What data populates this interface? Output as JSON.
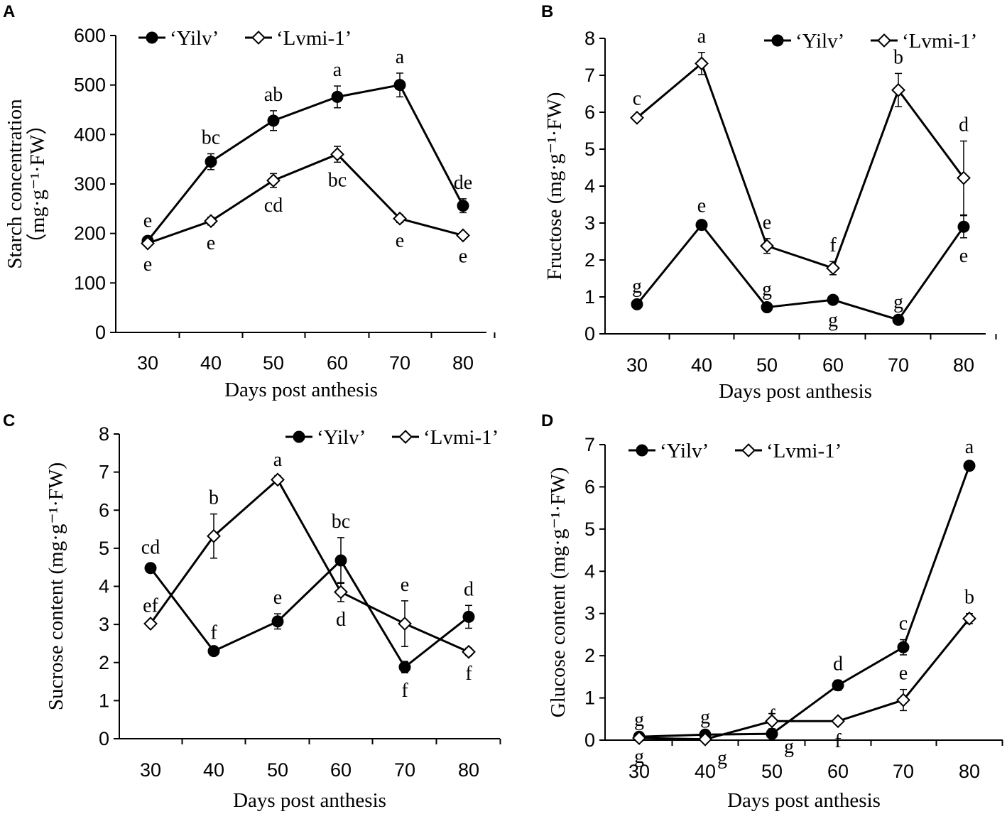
{
  "chart_data": [
    {
      "id": "A",
      "panel_label": "A",
      "type": "line",
      "x": [
        30,
        40,
        50,
        60,
        70,
        80
      ],
      "xlabel": "Days post anthesis",
      "ylabel": "Starch concentration",
      "ylabel_unit": "（mg·g⁻¹·FW）",
      "ylim": [
        0,
        600
      ],
      "yticks": [
        0,
        100,
        200,
        300,
        400,
        500,
        600
      ],
      "legend": [
        "‘Yilv’",
        "‘Lvmi-1’"
      ],
      "legend_position": "top-left",
      "series": [
        {
          "name": "‘Yilv’",
          "marker": "filled-circle",
          "values": [
            185,
            345,
            428,
            476,
            500,
            256
          ],
          "errors": [
            8,
            16,
            20,
            22,
            24,
            14
          ],
          "letters": [
            "e",
            "bc",
            "ab",
            "a",
            "a",
            "de"
          ],
          "letter_pos": [
            "above",
            "above",
            "above",
            "above",
            "above",
            "above"
          ]
        },
        {
          "name": "‘Lvmi-1’",
          "marker": "open-diamond",
          "values": [
            180,
            225,
            307,
            360,
            230,
            196
          ],
          "errors": [
            6,
            8,
            14,
            16,
            8,
            6
          ],
          "letters": [
            "e",
            "e",
            "cd",
            "bc",
            "e",
            "e"
          ],
          "letter_pos": [
            "below",
            "below",
            "below",
            "below",
            "below",
            "below"
          ]
        }
      ]
    },
    {
      "id": "B",
      "panel_label": "B",
      "type": "line",
      "x": [
        30,
        40,
        50,
        60,
        70,
        80
      ],
      "xlabel": "Days post anthesis",
      "ylabel": "Fructose (mg·g⁻¹·FW)",
      "ylabel_unit": "",
      "ylim": [
        0,
        8
      ],
      "yticks": [
        0,
        1,
        2,
        3,
        4,
        5,
        6,
        7,
        8
      ],
      "legend": [
        "‘Yilv’",
        "‘Lvmi-1’"
      ],
      "legend_position": "top-right",
      "series": [
        {
          "name": "‘Yilv’",
          "marker": "filled-circle",
          "values": [
            0.8,
            2.95,
            0.72,
            0.92,
            0.38,
            2.9
          ],
          "errors": [
            0.05,
            0.08,
            0.05,
            0.06,
            0.04,
            0.3
          ],
          "letters": [
            "g",
            "e",
            "g",
            "g",
            "g",
            "e"
          ],
          "letter_pos": [
            "above",
            "above",
            "above",
            "below",
            "above",
            "below"
          ]
        },
        {
          "name": "‘Lvmi-1’",
          "marker": "open-diamond",
          "values": [
            5.85,
            7.32,
            2.38,
            1.78,
            6.6,
            4.22
          ],
          "errors": [
            0.08,
            0.3,
            0.2,
            0.18,
            0.45,
            1.0
          ],
          "letters": [
            "c",
            "a",
            "e",
            "f",
            "b",
            "d"
          ],
          "letter_pos": [
            "above",
            "above",
            "above",
            "above",
            "above",
            "above"
          ]
        }
      ]
    },
    {
      "id": "C",
      "panel_label": "C",
      "type": "line",
      "x": [
        30,
        40,
        50,
        60,
        70,
        80
      ],
      "xlabel": "Days post anthesis",
      "ylabel": "Sucrose content (mg·g⁻¹·FW)",
      "ylabel_unit": "",
      "ylim": [
        0,
        8
      ],
      "yticks": [
        0,
        1,
        2,
        3,
        4,
        5,
        6,
        7,
        8
      ],
      "legend": [
        "‘Yilv’",
        "‘Lvmi-1’"
      ],
      "legend_position": "top-right",
      "series": [
        {
          "name": "‘Yilv’",
          "marker": "filled-circle",
          "values": [
            4.48,
            2.3,
            3.08,
            4.68,
            1.88,
            3.2
          ],
          "errors": [
            0.12,
            0.06,
            0.2,
            0.6,
            0.15,
            0.3
          ],
          "letters": [
            "cd",
            "f",
            "e",
            "bc",
            "f",
            "d"
          ],
          "letter_pos": [
            "above",
            "above",
            "above",
            "above",
            "below",
            "above"
          ]
        },
        {
          "name": "‘Lvmi-1’",
          "marker": "open-diamond",
          "values": [
            3.02,
            5.32,
            6.8,
            3.85,
            3.02,
            2.28
          ],
          "errors": [
            0.05,
            0.58,
            0.1,
            0.25,
            0.6,
            0.1
          ],
          "letters": [
            "ef",
            "b",
            "a",
            "d",
            "e",
            "f"
          ],
          "letter_pos": [
            "above",
            "above",
            "above",
            "below",
            "above",
            "below"
          ]
        }
      ]
    },
    {
      "id": "D",
      "panel_label": "D",
      "type": "line",
      "x": [
        30,
        40,
        50,
        60,
        70,
        80
      ],
      "xlabel": "Days post anthesis",
      "ylabel": "Glucose content (mg·g⁻¹·FW)",
      "ylabel_unit": "",
      "ylim": [
        0,
        7
      ],
      "yticks": [
        0,
        1,
        2,
        3,
        4,
        5,
        6,
        7
      ],
      "legend": [
        "‘Yilv’",
        "‘Lvmi-1’"
      ],
      "legend_position": "top-left",
      "series": [
        {
          "name": "‘Yilv’",
          "marker": "filled-circle",
          "values": [
            0.08,
            0.13,
            0.15,
            1.3,
            2.2,
            6.5
          ],
          "errors": [
            0.02,
            0.03,
            0.03,
            0.12,
            0.18,
            0.06
          ],
          "letters": [
            "g",
            "g",
            "f",
            "d",
            "c",
            "a"
          ],
          "letter_pos": [
            "above",
            "above",
            "above",
            "above",
            "above",
            "above"
          ]
        },
        {
          "name": "‘Lvmi-1’",
          "marker": "open-diamond",
          "values": [
            0.05,
            0.02,
            0.45,
            0.45,
            0.95,
            2.88
          ],
          "errors": [
            0.02,
            0.02,
            0.18,
            0.05,
            0.25,
            0.12
          ],
          "letters": [
            "g",
            "g",
            "g",
            "f",
            "e",
            "b"
          ],
          "letter_pos": [
            "below",
            "below-right",
            "below-right",
            "below",
            "above",
            "above"
          ]
        }
      ]
    }
  ]
}
